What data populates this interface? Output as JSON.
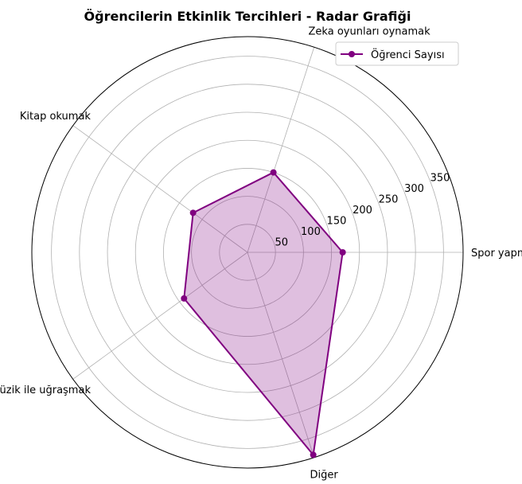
{
  "chart_data": {
    "type": "radar",
    "title": "Öğrencilerin Etkinlik Tercihleri - Radar Grafiği",
    "categories": [
      "Spor yapmak",
      "Zeka oyunları oynamak",
      "Kitap okumak",
      "Müzik ile uğraşmak",
      "Diğer"
    ],
    "series": [
      {
        "name": "Öğrenci Sayısı",
        "values": [
          170,
          150,
          120,
          140,
          380
        ]
      }
    ],
    "radial_ticks": [
      50,
      100,
      150,
      200,
      250,
      300,
      350
    ],
    "rlim": [
      0,
      385
    ],
    "grid": true,
    "legend_position": "top-right",
    "colors": {
      "line": "#800080",
      "fill": "#800080",
      "grid": "#b0b0b0"
    }
  }
}
